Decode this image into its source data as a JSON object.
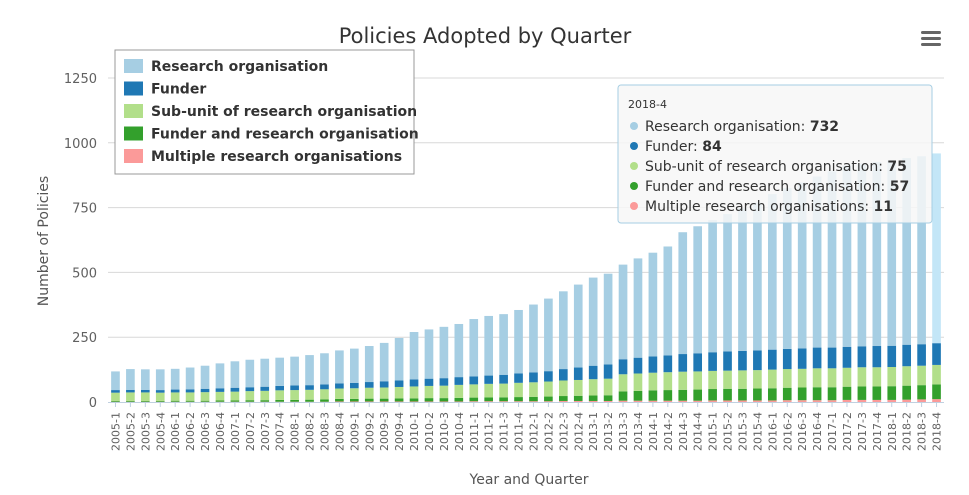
{
  "chart_data": {
    "type": "bar",
    "stacked": true,
    "title": "Policies Adopted by Quarter",
    "xlabel": "Year and Quarter",
    "ylabel": "Number of Policies",
    "ylim": [
      0,
      1250
    ],
    "yticks": [
      0,
      250,
      500,
      750,
      1000,
      1250
    ],
    "grid": true,
    "legend_position": "top-left",
    "categories": [
      "2005-1",
      "2005-2",
      "2005-3",
      "2005-4",
      "2006-1",
      "2006-2",
      "2006-3",
      "2006-4",
      "2007-1",
      "2007-2",
      "2007-3",
      "2007-4",
      "2008-1",
      "2008-2",
      "2008-3",
      "2008-4",
      "2009-1",
      "2009-2",
      "2009-3",
      "2009-4",
      "2010-1",
      "2010-2",
      "2010-3",
      "2010-4",
      "2011-1",
      "2011-2",
      "2011-3",
      "2011-4",
      "2012-1",
      "2012-2",
      "2012-3",
      "2012-4",
      "2013-1",
      "2013-2",
      "2013-3",
      "2013-4",
      "2014-1",
      "2014-2",
      "2014-3",
      "2014-4",
      "2015-1",
      "2015-2",
      "2015-3",
      "2015-4",
      "2016-1",
      "2016-2",
      "2016-3",
      "2016-4",
      "2017-1",
      "2017-2",
      "2017-3",
      "2017-4",
      "2018-1",
      "2018-2",
      "2018-3",
      "2018-4"
    ],
    "series": [
      {
        "name": "Multiple research organisations",
        "color": "#fb9a99",
        "values": [
          1,
          1,
          1,
          1,
          1,
          1,
          1,
          1,
          1,
          1,
          1,
          1,
          1,
          1,
          1,
          2,
          2,
          2,
          2,
          2,
          2,
          2,
          2,
          2,
          3,
          3,
          3,
          3,
          3,
          3,
          4,
          4,
          4,
          4,
          5,
          5,
          5,
          5,
          5,
          5,
          6,
          6,
          6,
          6,
          6,
          7,
          7,
          7,
          7,
          8,
          8,
          8,
          8,
          9,
          10,
          11
        ]
      },
      {
        "name": "Funder and research organisation",
        "color": "#33a02c",
        "values": [
          3,
          3,
          3,
          3,
          4,
          4,
          4,
          5,
          5,
          6,
          6,
          7,
          7,
          8,
          9,
          10,
          10,
          11,
          11,
          12,
          12,
          13,
          13,
          14,
          14,
          15,
          15,
          16,
          17,
          18,
          19,
          20,
          21,
          22,
          36,
          38,
          40,
          41,
          42,
          43,
          44,
          45,
          45,
          46,
          47,
          48,
          49,
          50,
          50,
          51,
          52,
          52,
          53,
          54,
          55,
          57
        ]
      },
      {
        "name": "Sub-unit of research organisation",
        "color": "#b2df8a",
        "values": [
          32,
          33,
          33,
          32,
          32,
          32,
          33,
          33,
          34,
          35,
          36,
          37,
          38,
          38,
          39,
          40,
          41,
          42,
          43,
          44,
          46,
          47,
          48,
          50,
          51,
          52,
          53,
          55,
          56,
          58,
          60,
          61,
          63,
          64,
          66,
          67,
          68,
          69,
          70,
          70,
          70,
          70,
          71,
          71,
          72,
          72,
          72,
          73,
          73,
          73,
          74,
          74,
          74,
          75,
          75,
          75
        ]
      },
      {
        "name": "Funder",
        "color": "#1f78b4",
        "values": [
          10,
          10,
          10,
          10,
          11,
          12,
          13,
          14,
          15,
          15,
          16,
          17,
          18,
          18,
          19,
          20,
          21,
          22,
          24,
          25,
          27,
          28,
          29,
          30,
          31,
          32,
          34,
          36,
          38,
          40,
          44,
          48,
          52,
          55,
          58,
          61,
          63,
          65,
          68,
          70,
          72,
          74,
          75,
          76,
          77,
          78,
          79,
          80,
          80,
          81,
          81,
          82,
          82,
          83,
          83,
          84
        ]
      },
      {
        "name": "Research organisation",
        "color": "#a6cee3",
        "values": [
          72,
          80,
          79,
          80,
          80,
          84,
          89,
          96,
          102,
          106,
          108,
          109,
          111,
          116,
          120,
          127,
          132,
          139,
          148,
          164,
          183,
          190,
          198,
          205,
          221,
          230,
          234,
          245,
          262,
          280,
          300,
          320,
          340,
          350,
          365,
          383,
          400,
          420,
          470,
          490,
          510,
          530,
          550,
          570,
          600,
          620,
          640,
          660,
          680,
          700,
          705,
          710,
          715,
          720,
          725,
          732
        ]
      }
    ]
  },
  "legend": {
    "items": [
      {
        "label": "Research organisation",
        "color": "#a6cee3"
      },
      {
        "label": "Funder",
        "color": "#1f78b4"
      },
      {
        "label": "Sub-unit of research organisation",
        "color": "#b2df8a"
      },
      {
        "label": "Funder and research organisation",
        "color": "#33a02c"
      },
      {
        "label": "Multiple research organisations",
        "color": "#fb9a99"
      }
    ]
  },
  "tooltip": {
    "header": "2018-4",
    "rows": [
      {
        "label": "Research organisation: ",
        "value": "732",
        "color": "#a6cee3"
      },
      {
        "label": "Funder: ",
        "value": "84",
        "color": "#1f78b4"
      },
      {
        "label": "Sub-unit of research organisation: ",
        "value": "75",
        "color": "#b2df8a"
      },
      {
        "label": "Funder and research organisation: ",
        "value": "57",
        "color": "#33a02c"
      },
      {
        "label": "Multiple research organisations: ",
        "value": "11",
        "color": "#fb9a99"
      }
    ]
  },
  "menu": {
    "icon": "hamburger-menu-icon"
  }
}
